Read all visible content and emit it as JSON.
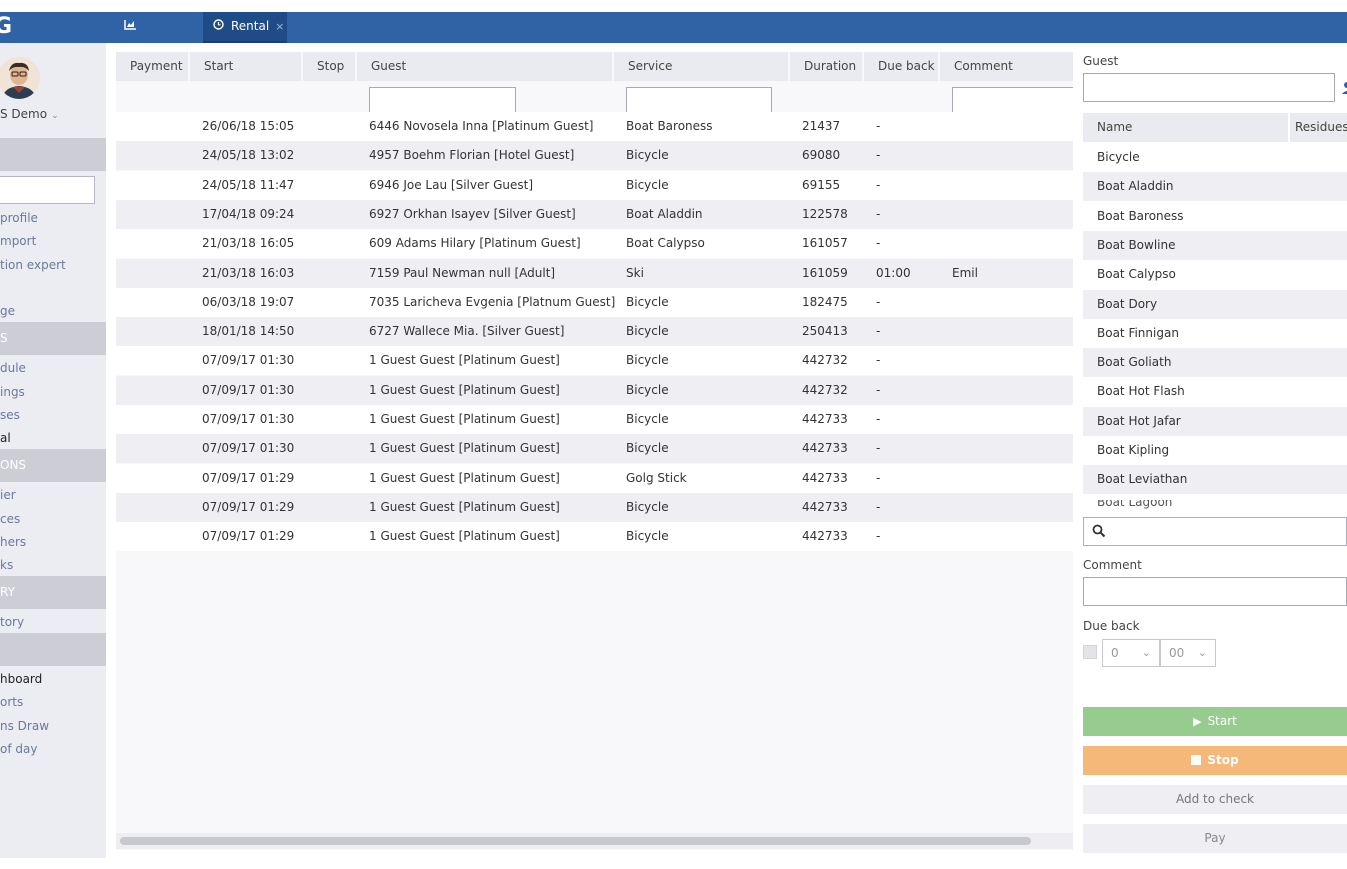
{
  "app": {
    "logo": "G"
  },
  "tabs": [
    {
      "label": "Dashboard",
      "icon": "chart-icon"
    },
    {
      "label": "Rental",
      "icon": "clock-icon",
      "close": "×"
    }
  ],
  "sidebar": {
    "username": "S Demo",
    "items_profile": [
      "profile",
      "mport",
      "tion expert"
    ],
    "item_ge": "ge",
    "section_s": "S",
    "items_s": [
      "dule",
      "ings",
      "ses",
      "al"
    ],
    "section_ons": "ONS",
    "items_ons": [
      "ier",
      "ces",
      "hers",
      "ks"
    ],
    "section_ry": "RY",
    "items_ry": [
      "tory"
    ],
    "items_last": [
      "hboard",
      "orts",
      "ns Draw",
      "of day"
    ]
  },
  "table": {
    "columns": [
      "Payment",
      "Start",
      "Stop",
      "Guest",
      "Service",
      "Duration",
      "Due back",
      "Comment"
    ],
    "rows": [
      {
        "payment": "",
        "start": "26/06/18 15:05",
        "stop": "",
        "guest": "6446 Novosela Inna [Platinum Guest]",
        "service": "Boat Baroness",
        "duration": "21437",
        "due_back": "-",
        "comment": ""
      },
      {
        "payment": "",
        "start": "24/05/18 13:02",
        "stop": "",
        "guest": "4957 Boehm Florian [Hotel Guest]",
        "service": "Bicycle",
        "duration": "69080",
        "due_back": "-",
        "comment": ""
      },
      {
        "payment": "",
        "start": "24/05/18 11:47",
        "stop": "",
        "guest": "6946 Joe Lau [Silver Guest]",
        "service": "Bicycle",
        "duration": "69155",
        "due_back": "-",
        "comment": ""
      },
      {
        "payment": "",
        "start": "17/04/18 09:24",
        "stop": "",
        "guest": "6927 Orkhan Isayev [Silver Guest]",
        "service": "Boat Aladdin",
        "duration": "122578",
        "due_back": "-",
        "comment": ""
      },
      {
        "payment": "",
        "start": "21/03/18 16:05",
        "stop": "",
        "guest": "609 Adams Hilary [Platinum Guest]",
        "service": "Boat Calypso",
        "duration": "161057",
        "due_back": "-",
        "comment": ""
      },
      {
        "payment": "",
        "start": "21/03/18 16:03",
        "stop": "",
        "guest": "7159 Paul Newman null [Adult]",
        "service": "Ski",
        "duration": "161059",
        "due_back": "01:00",
        "comment": "Emil"
      },
      {
        "payment": "",
        "start": "06/03/18 19:07",
        "stop": "",
        "guest": "7035 Laricheva Evgenia [Platnum Guest]",
        "service": "Bicycle",
        "duration": "182475",
        "due_back": "-",
        "comment": ""
      },
      {
        "payment": "",
        "start": "18/01/18 14:50",
        "stop": "",
        "guest": "6727 Wallece Mia. [Silver Guest]",
        "service": "Bicycle",
        "duration": "250413",
        "due_back": "-",
        "comment": ""
      },
      {
        "payment": "",
        "start": "07/09/17 01:30",
        "stop": "",
        "guest": "1 Guest Guest [Platinum Guest]",
        "service": "Bicycle",
        "duration": "442732",
        "due_back": "-",
        "comment": ""
      },
      {
        "payment": "",
        "start": "07/09/17 01:30",
        "stop": "",
        "guest": "1 Guest Guest [Platinum Guest]",
        "service": "Bicycle",
        "duration": "442732",
        "due_back": "-",
        "comment": ""
      },
      {
        "payment": "",
        "start": "07/09/17 01:30",
        "stop": "",
        "guest": "1 Guest Guest [Platinum Guest]",
        "service": "Bicycle",
        "duration": "442733",
        "due_back": "-",
        "comment": ""
      },
      {
        "payment": "",
        "start": "07/09/17 01:30",
        "stop": "",
        "guest": "1 Guest Guest [Platinum Guest]",
        "service": "Bicycle",
        "duration": "442733",
        "due_back": "-",
        "comment": ""
      },
      {
        "payment": "",
        "start": "07/09/17 01:29",
        "stop": "",
        "guest": "1 Guest Guest [Platinum Guest]",
        "service": "Golg Stick",
        "duration": "442733",
        "due_back": "-",
        "comment": ""
      },
      {
        "payment": "",
        "start": "07/09/17 01:29",
        "stop": "",
        "guest": "1 Guest Guest [Platinum Guest]",
        "service": "Bicycle",
        "duration": "442733",
        "due_back": "-",
        "comment": ""
      },
      {
        "payment": "",
        "start": "07/09/17 01:29",
        "stop": "",
        "guest": "1 Guest Guest [Platinum Guest]",
        "service": "Bicycle",
        "duration": "442733",
        "due_back": "-",
        "comment": ""
      }
    ]
  },
  "panel": {
    "guest_label": "Guest",
    "services_columns": [
      "Name",
      "Residues"
    ],
    "services": [
      "Bicycle",
      "Boat Aladdin",
      "Boat Baroness",
      "Boat Bowline",
      "Boat Calypso",
      "Boat Dory",
      "Boat Finnigan",
      "Boat Goliath",
      "Boat Hot Flash",
      "Boat Hot Jafar",
      "Boat Kipling",
      "Boat Leviathan"
    ],
    "comment_label": "Comment",
    "due_back_label": "Due back",
    "due_back_hours": "0",
    "due_back_minutes": "00",
    "start_label": "Start",
    "stop_label": "Stop",
    "add_to_check_label": "Add to check",
    "pay_label": "Pay"
  },
  "colors": {
    "topbar": "#2f63a6",
    "start_button": "#96cc8d",
    "stop_button": "#f6b878"
  }
}
